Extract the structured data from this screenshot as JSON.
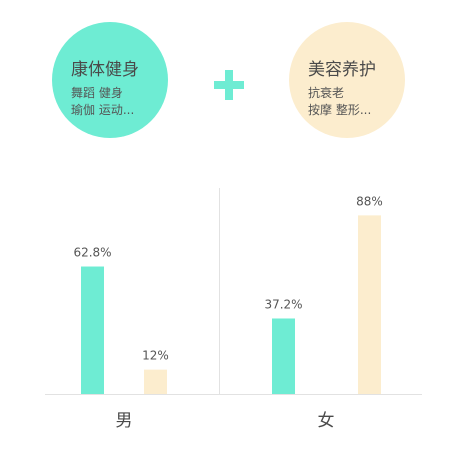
{
  "bubbles": [
    {
      "title": "康体健身",
      "line1": "舞蹈  健身",
      "line2": "瑜伽  运动...",
      "color": "#6eecd3"
    },
    {
      "title": "美容养护",
      "line1": "抗衰老",
      "line2": "按摩  整形...",
      "color": "#fcedce"
    }
  ],
  "plus_color": "#6eecd3",
  "chart_data": {
    "type": "bar",
    "categories": [
      "男",
      "女"
    ],
    "series": [
      {
        "values": [
          62.8,
          37.2
        ],
        "labels": [
          "62.8%",
          "37.2%"
        ],
        "color": "#6eecd3"
      },
      {
        "values": [
          12,
          88
        ],
        "labels": [
          "12%",
          "88%"
        ],
        "color": "#fcedce"
      }
    ],
    "ylim": [
      0,
      100
    ],
    "grid": false,
    "legend": "none"
  }
}
